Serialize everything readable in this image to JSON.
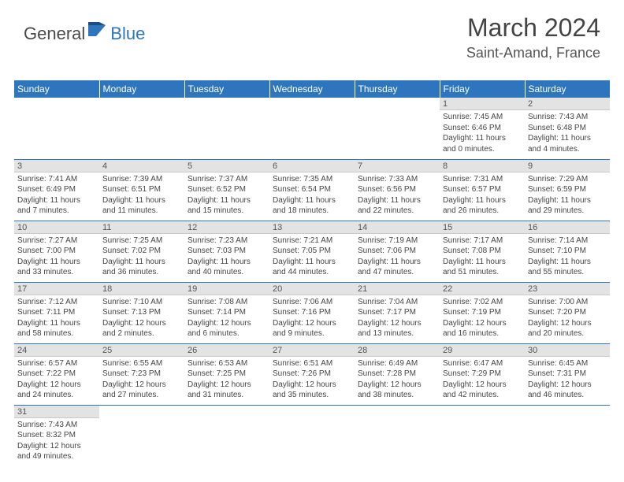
{
  "logo": {
    "text1": "General",
    "text2": "Blue",
    "flag_color": "#2d76bd"
  },
  "title": "March 2024",
  "location": "Saint-Amand, France",
  "colors": {
    "header_bg": "#2d76bd",
    "header_text": "#ffffff",
    "rule": "#2d76bd",
    "daynum_bg": "#e3e3e3"
  },
  "days_of_week": [
    "Sunday",
    "Monday",
    "Tuesday",
    "Wednesday",
    "Thursday",
    "Friday",
    "Saturday"
  ],
  "weeks": [
    [
      null,
      null,
      null,
      null,
      null,
      {
        "n": "1",
        "sr": "Sunrise: 7:45 AM",
        "ss": "Sunset: 6:46 PM",
        "dl1": "Daylight: 11 hours",
        "dl2": "and 0 minutes."
      },
      {
        "n": "2",
        "sr": "Sunrise: 7:43 AM",
        "ss": "Sunset: 6:48 PM",
        "dl1": "Daylight: 11 hours",
        "dl2": "and 4 minutes."
      }
    ],
    [
      {
        "n": "3",
        "sr": "Sunrise: 7:41 AM",
        "ss": "Sunset: 6:49 PM",
        "dl1": "Daylight: 11 hours",
        "dl2": "and 7 minutes."
      },
      {
        "n": "4",
        "sr": "Sunrise: 7:39 AM",
        "ss": "Sunset: 6:51 PM",
        "dl1": "Daylight: 11 hours",
        "dl2": "and 11 minutes."
      },
      {
        "n": "5",
        "sr": "Sunrise: 7:37 AM",
        "ss": "Sunset: 6:52 PM",
        "dl1": "Daylight: 11 hours",
        "dl2": "and 15 minutes."
      },
      {
        "n": "6",
        "sr": "Sunrise: 7:35 AM",
        "ss": "Sunset: 6:54 PM",
        "dl1": "Daylight: 11 hours",
        "dl2": "and 18 minutes."
      },
      {
        "n": "7",
        "sr": "Sunrise: 7:33 AM",
        "ss": "Sunset: 6:56 PM",
        "dl1": "Daylight: 11 hours",
        "dl2": "and 22 minutes."
      },
      {
        "n": "8",
        "sr": "Sunrise: 7:31 AM",
        "ss": "Sunset: 6:57 PM",
        "dl1": "Daylight: 11 hours",
        "dl2": "and 26 minutes."
      },
      {
        "n": "9",
        "sr": "Sunrise: 7:29 AM",
        "ss": "Sunset: 6:59 PM",
        "dl1": "Daylight: 11 hours",
        "dl2": "and 29 minutes."
      }
    ],
    [
      {
        "n": "10",
        "sr": "Sunrise: 7:27 AM",
        "ss": "Sunset: 7:00 PM",
        "dl1": "Daylight: 11 hours",
        "dl2": "and 33 minutes."
      },
      {
        "n": "11",
        "sr": "Sunrise: 7:25 AM",
        "ss": "Sunset: 7:02 PM",
        "dl1": "Daylight: 11 hours",
        "dl2": "and 36 minutes."
      },
      {
        "n": "12",
        "sr": "Sunrise: 7:23 AM",
        "ss": "Sunset: 7:03 PM",
        "dl1": "Daylight: 11 hours",
        "dl2": "and 40 minutes."
      },
      {
        "n": "13",
        "sr": "Sunrise: 7:21 AM",
        "ss": "Sunset: 7:05 PM",
        "dl1": "Daylight: 11 hours",
        "dl2": "and 44 minutes."
      },
      {
        "n": "14",
        "sr": "Sunrise: 7:19 AM",
        "ss": "Sunset: 7:06 PM",
        "dl1": "Daylight: 11 hours",
        "dl2": "and 47 minutes."
      },
      {
        "n": "15",
        "sr": "Sunrise: 7:17 AM",
        "ss": "Sunset: 7:08 PM",
        "dl1": "Daylight: 11 hours",
        "dl2": "and 51 minutes."
      },
      {
        "n": "16",
        "sr": "Sunrise: 7:14 AM",
        "ss": "Sunset: 7:10 PM",
        "dl1": "Daylight: 11 hours",
        "dl2": "and 55 minutes."
      }
    ],
    [
      {
        "n": "17",
        "sr": "Sunrise: 7:12 AM",
        "ss": "Sunset: 7:11 PM",
        "dl1": "Daylight: 11 hours",
        "dl2": "and 58 minutes."
      },
      {
        "n": "18",
        "sr": "Sunrise: 7:10 AM",
        "ss": "Sunset: 7:13 PM",
        "dl1": "Daylight: 12 hours",
        "dl2": "and 2 minutes."
      },
      {
        "n": "19",
        "sr": "Sunrise: 7:08 AM",
        "ss": "Sunset: 7:14 PM",
        "dl1": "Daylight: 12 hours",
        "dl2": "and 6 minutes."
      },
      {
        "n": "20",
        "sr": "Sunrise: 7:06 AM",
        "ss": "Sunset: 7:16 PM",
        "dl1": "Daylight: 12 hours",
        "dl2": "and 9 minutes."
      },
      {
        "n": "21",
        "sr": "Sunrise: 7:04 AM",
        "ss": "Sunset: 7:17 PM",
        "dl1": "Daylight: 12 hours",
        "dl2": "and 13 minutes."
      },
      {
        "n": "22",
        "sr": "Sunrise: 7:02 AM",
        "ss": "Sunset: 7:19 PM",
        "dl1": "Daylight: 12 hours",
        "dl2": "and 16 minutes."
      },
      {
        "n": "23",
        "sr": "Sunrise: 7:00 AM",
        "ss": "Sunset: 7:20 PM",
        "dl1": "Daylight: 12 hours",
        "dl2": "and 20 minutes."
      }
    ],
    [
      {
        "n": "24",
        "sr": "Sunrise: 6:57 AM",
        "ss": "Sunset: 7:22 PM",
        "dl1": "Daylight: 12 hours",
        "dl2": "and 24 minutes."
      },
      {
        "n": "25",
        "sr": "Sunrise: 6:55 AM",
        "ss": "Sunset: 7:23 PM",
        "dl1": "Daylight: 12 hours",
        "dl2": "and 27 minutes."
      },
      {
        "n": "26",
        "sr": "Sunrise: 6:53 AM",
        "ss": "Sunset: 7:25 PM",
        "dl1": "Daylight: 12 hours",
        "dl2": "and 31 minutes."
      },
      {
        "n": "27",
        "sr": "Sunrise: 6:51 AM",
        "ss": "Sunset: 7:26 PM",
        "dl1": "Daylight: 12 hours",
        "dl2": "and 35 minutes."
      },
      {
        "n": "28",
        "sr": "Sunrise: 6:49 AM",
        "ss": "Sunset: 7:28 PM",
        "dl1": "Daylight: 12 hours",
        "dl2": "and 38 minutes."
      },
      {
        "n": "29",
        "sr": "Sunrise: 6:47 AM",
        "ss": "Sunset: 7:29 PM",
        "dl1": "Daylight: 12 hours",
        "dl2": "and 42 minutes."
      },
      {
        "n": "30",
        "sr": "Sunrise: 6:45 AM",
        "ss": "Sunset: 7:31 PM",
        "dl1": "Daylight: 12 hours",
        "dl2": "and 46 minutes."
      }
    ],
    [
      {
        "n": "31",
        "sr": "Sunrise: 7:43 AM",
        "ss": "Sunset: 8:32 PM",
        "dl1": "Daylight: 12 hours",
        "dl2": "and 49 minutes."
      },
      null,
      null,
      null,
      null,
      null,
      null
    ]
  ]
}
